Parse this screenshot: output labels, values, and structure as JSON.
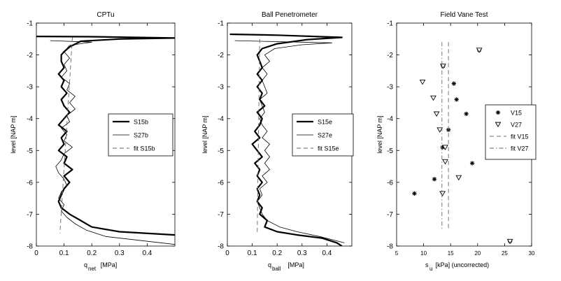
{
  "figure": {
    "panels": [
      {
        "title": "CPTu",
        "ylabel": "level [NAP  m]",
        "xlabel_main": "q",
        "xlabel_sub": "net",
        "xlabel_unit": "[MPa]",
        "xticks": [
          0,
          0.1,
          0.2,
          0.3,
          0.4
        ],
        "xtick_labels": [
          "0",
          "0.1",
          "0.2",
          "0.3",
          "0.4"
        ],
        "xlim": [
          0,
          0.5
        ],
        "legend": [
          "S15b",
          "S27b",
          "fit S15b"
        ]
      },
      {
        "title": "Ball Penetrometer",
        "ylabel": "level [NAP  m]",
        "xlabel_main": "q",
        "xlabel_sub": "ball",
        "xlabel_unit": "[MPa]",
        "xticks": [
          0,
          0.1,
          0.2,
          0.3,
          0.4
        ],
        "xtick_labels": [
          "0",
          "0.1",
          "0.2",
          "0.3",
          "0.4"
        ],
        "xlim": [
          0,
          0.5
        ],
        "legend": [
          "S15e",
          "S27e",
          "fit S15e"
        ]
      },
      {
        "title": "Field Vane Test",
        "ylabel": "level [NAP  m]",
        "xlabel_main": "s",
        "xlabel_sub": "u",
        "xlabel_unit": "[kPa] (uncorrected)",
        "xticks": [
          5,
          10,
          15,
          20,
          25,
          30
        ],
        "xtick_labels": [
          "5",
          "10",
          "15",
          "20",
          "25",
          "30"
        ],
        "xlim": [
          5,
          30
        ],
        "legend": [
          "V15",
          "V27",
          "fit V15",
          "fit V27"
        ]
      }
    ],
    "yticks": [
      -1,
      -2,
      -3,
      -4,
      -5,
      -6,
      -7,
      -8
    ],
    "ytick_labels": [
      "-1",
      "-2",
      "-3",
      "-4",
      "-5",
      "-6",
      "-7",
      "-8"
    ],
    "ylim": [
      -8,
      -1
    ]
  },
  "chart_data": [
    {
      "type": "line",
      "title": "CPTu",
      "xlim": [
        0,
        0.5
      ],
      "ylim": [
        -8,
        -1
      ],
      "orientation": "depth-profile",
      "series": [
        {
          "name": "S15b",
          "style": "thick",
          "points": [
            [
              0.0,
              -1.42
            ],
            [
              0.22,
              -1.43
            ],
            [
              0.5,
              -1.47
            ],
            [
              0.3,
              -1.5
            ],
            [
              0.16,
              -1.57
            ],
            [
              0.12,
              -1.75
            ],
            [
              0.1,
              -1.9
            ],
            [
              0.09,
              -2.0
            ],
            [
              0.09,
              -2.2
            ],
            [
              0.1,
              -2.4
            ],
            [
              0.08,
              -2.6
            ],
            [
              0.1,
              -2.8
            ],
            [
              0.09,
              -3.0
            ],
            [
              0.11,
              -3.2
            ],
            [
              0.09,
              -3.4
            ],
            [
              0.1,
              -3.6
            ],
            [
              0.12,
              -3.8
            ],
            [
              0.1,
              -4.0
            ],
            [
              0.08,
              -4.2
            ],
            [
              0.11,
              -4.4
            ],
            [
              0.09,
              -4.6
            ],
            [
              0.1,
              -4.8
            ],
            [
              0.08,
              -5.0
            ],
            [
              0.11,
              -5.2
            ],
            [
              0.1,
              -5.4
            ],
            [
              0.13,
              -5.6
            ],
            [
              0.1,
              -5.8
            ],
            [
              0.12,
              -6.0
            ],
            [
              0.1,
              -6.2
            ],
            [
              0.09,
              -6.4
            ],
            [
              0.08,
              -6.6
            ],
            [
              0.09,
              -6.8
            ],
            [
              0.12,
              -7.0
            ],
            [
              0.16,
              -7.2
            ],
            [
              0.2,
              -7.4
            ],
            [
              0.3,
              -7.55
            ],
            [
              0.5,
              -7.65
            ]
          ]
        },
        {
          "name": "S27b",
          "style": "thin",
          "points": [
            [
              0.05,
              -1.55
            ],
            [
              0.2,
              -1.6
            ],
            [
              0.12,
              -1.7
            ],
            [
              0.1,
              -1.9
            ],
            [
              0.12,
              -2.1
            ],
            [
              0.1,
              -2.3
            ],
            [
              0.11,
              -2.5
            ],
            [
              0.09,
              -2.7
            ],
            [
              0.12,
              -2.9
            ],
            [
              0.11,
              -3.1
            ],
            [
              0.14,
              -3.3
            ],
            [
              0.12,
              -3.5
            ],
            [
              0.14,
              -3.7
            ],
            [
              0.11,
              -3.9
            ],
            [
              0.12,
              -4.1
            ],
            [
              0.09,
              -4.3
            ],
            [
              0.11,
              -4.5
            ],
            [
              0.1,
              -4.7
            ],
            [
              0.13,
              -4.9
            ],
            [
              0.1,
              -5.1
            ],
            [
              0.09,
              -5.3
            ],
            [
              0.07,
              -5.5
            ],
            [
              0.08,
              -5.7
            ],
            [
              0.1,
              -5.9
            ],
            [
              0.11,
              -6.1
            ],
            [
              0.09,
              -6.3
            ],
            [
              0.08,
              -6.5
            ],
            [
              0.1,
              -6.7
            ],
            [
              0.09,
              -6.9
            ],
            [
              0.11,
              -7.1
            ],
            [
              0.14,
              -7.3
            ],
            [
              0.18,
              -7.5
            ],
            [
              0.25,
              -7.7
            ],
            [
              0.5,
              -7.95
            ]
          ]
        },
        {
          "name": "fit S15b",
          "style": "dashed",
          "points": [
            [
              0.13,
              -1.45
            ],
            [
              0.085,
              -7.6
            ]
          ]
        }
      ]
    },
    {
      "type": "line",
      "title": "Ball Penetrometer",
      "xlim": [
        0,
        0.5
      ],
      "ylim": [
        -8,
        -1
      ],
      "orientation": "depth-profile",
      "series": [
        {
          "name": "S15e",
          "style": "thick",
          "points": [
            [
              0.01,
              -1.35
            ],
            [
              0.2,
              -1.38
            ],
            [
              0.46,
              -1.45
            ],
            [
              0.32,
              -1.52
            ],
            [
              0.2,
              -1.65
            ],
            [
              0.14,
              -1.8
            ],
            [
              0.12,
              -2.0
            ],
            [
              0.13,
              -2.2
            ],
            [
              0.14,
              -2.4
            ],
            [
              0.12,
              -2.6
            ],
            [
              0.14,
              -2.8
            ],
            [
              0.12,
              -3.0
            ],
            [
              0.14,
              -3.2
            ],
            [
              0.13,
              -3.4
            ],
            [
              0.15,
              -3.6
            ],
            [
              0.12,
              -3.8
            ],
            [
              0.14,
              -4.0
            ],
            [
              0.13,
              -4.2
            ],
            [
              0.11,
              -4.4
            ],
            [
              0.13,
              -4.6
            ],
            [
              0.1,
              -4.8
            ],
            [
              0.12,
              -5.0
            ],
            [
              0.14,
              -5.2
            ],
            [
              0.11,
              -5.4
            ],
            [
              0.13,
              -5.6
            ],
            [
              0.12,
              -5.8
            ],
            [
              0.14,
              -6.0
            ],
            [
              0.12,
              -6.2
            ],
            [
              0.13,
              -6.4
            ],
            [
              0.12,
              -6.6
            ],
            [
              0.14,
              -6.8
            ],
            [
              0.13,
              -7.0
            ],
            [
              0.16,
              -7.2
            ],
            [
              0.15,
              -7.4
            ],
            [
              0.2,
              -7.55
            ],
            [
              0.28,
              -7.65
            ],
            [
              0.38,
              -7.75
            ],
            [
              0.44,
              -7.9
            ],
            [
              0.46,
              -8.0
            ]
          ]
        },
        {
          "name": "S27e",
          "style": "thin",
          "points": [
            [
              0.03,
              -1.55
            ],
            [
              0.18,
              -1.58
            ],
            [
              0.42,
              -1.62
            ],
            [
              0.3,
              -1.68
            ],
            [
              0.19,
              -1.8
            ],
            [
              0.15,
              -2.0
            ],
            [
              0.17,
              -2.2
            ],
            [
              0.14,
              -2.4
            ],
            [
              0.16,
              -2.6
            ],
            [
              0.14,
              -2.8
            ],
            [
              0.15,
              -3.0
            ],
            [
              0.16,
              -3.2
            ],
            [
              0.13,
              -3.4
            ],
            [
              0.14,
              -3.6
            ],
            [
              0.15,
              -3.8
            ],
            [
              0.13,
              -4.0
            ],
            [
              0.14,
              -4.2
            ],
            [
              0.16,
              -4.4
            ],
            [
              0.14,
              -4.6
            ],
            [
              0.17,
              -4.8
            ],
            [
              0.15,
              -5.0
            ],
            [
              0.17,
              -5.2
            ],
            [
              0.15,
              -5.4
            ],
            [
              0.17,
              -5.6
            ],
            [
              0.14,
              -5.8
            ],
            [
              0.16,
              -6.0
            ],
            [
              0.13,
              -6.2
            ],
            [
              0.14,
              -6.4
            ],
            [
              0.12,
              -6.6
            ],
            [
              0.13,
              -6.8
            ],
            [
              0.14,
              -7.0
            ],
            [
              0.16,
              -7.2
            ],
            [
              0.21,
              -7.4
            ],
            [
              0.28,
              -7.55
            ],
            [
              0.37,
              -7.7
            ],
            [
              0.47,
              -7.9
            ]
          ]
        },
        {
          "name": "fit S15e",
          "style": "dashed",
          "points": [
            [
              0.13,
              -1.5
            ],
            [
              0.12,
              -7.6
            ]
          ]
        }
      ]
    },
    {
      "type": "scatter",
      "title": "Field Vane Test",
      "xlim": [
        5,
        30
      ],
      "ylim": [
        -8,
        -1
      ],
      "series": [
        {
          "name": "V15",
          "marker": "asterisk",
          "points": [
            [
              20.3,
              -1.85
            ],
            [
              13.6,
              -2.35
            ],
            [
              15.6,
              -2.9
            ],
            [
              16.1,
              -3.4
            ],
            [
              17.9,
              -3.85
            ],
            [
              14.6,
              -4.35
            ],
            [
              13.5,
              -4.9
            ],
            [
              19.0,
              -5.4
            ],
            [
              12.0,
              -5.9
            ],
            [
              8.3,
              -6.35
            ],
            [
              26.0,
              -7.85
            ]
          ]
        },
        {
          "name": "V27",
          "marker": "triangle-down",
          "points": [
            [
              20.3,
              -1.85
            ],
            [
              13.6,
              -2.35
            ],
            [
              9.8,
              -2.85
            ],
            [
              11.8,
              -3.35
            ],
            [
              12.4,
              -3.85
            ],
            [
              13.0,
              -4.35
            ],
            [
              14.0,
              -4.9
            ],
            [
              14.0,
              -5.35
            ],
            [
              16.5,
              -5.85
            ],
            [
              13.5,
              -6.35
            ],
            [
              26.0,
              -7.85
            ]
          ]
        },
        {
          "name": "fit V15",
          "style": "dashed",
          "points": [
            [
              14.6,
              -1.6
            ],
            [
              14.6,
              -7.5
            ]
          ]
        },
        {
          "name": "fit V27",
          "style": "dash-dot",
          "points": [
            [
              13.4,
              -1.6
            ],
            [
              13.4,
              -7.5
            ]
          ]
        }
      ]
    }
  ]
}
